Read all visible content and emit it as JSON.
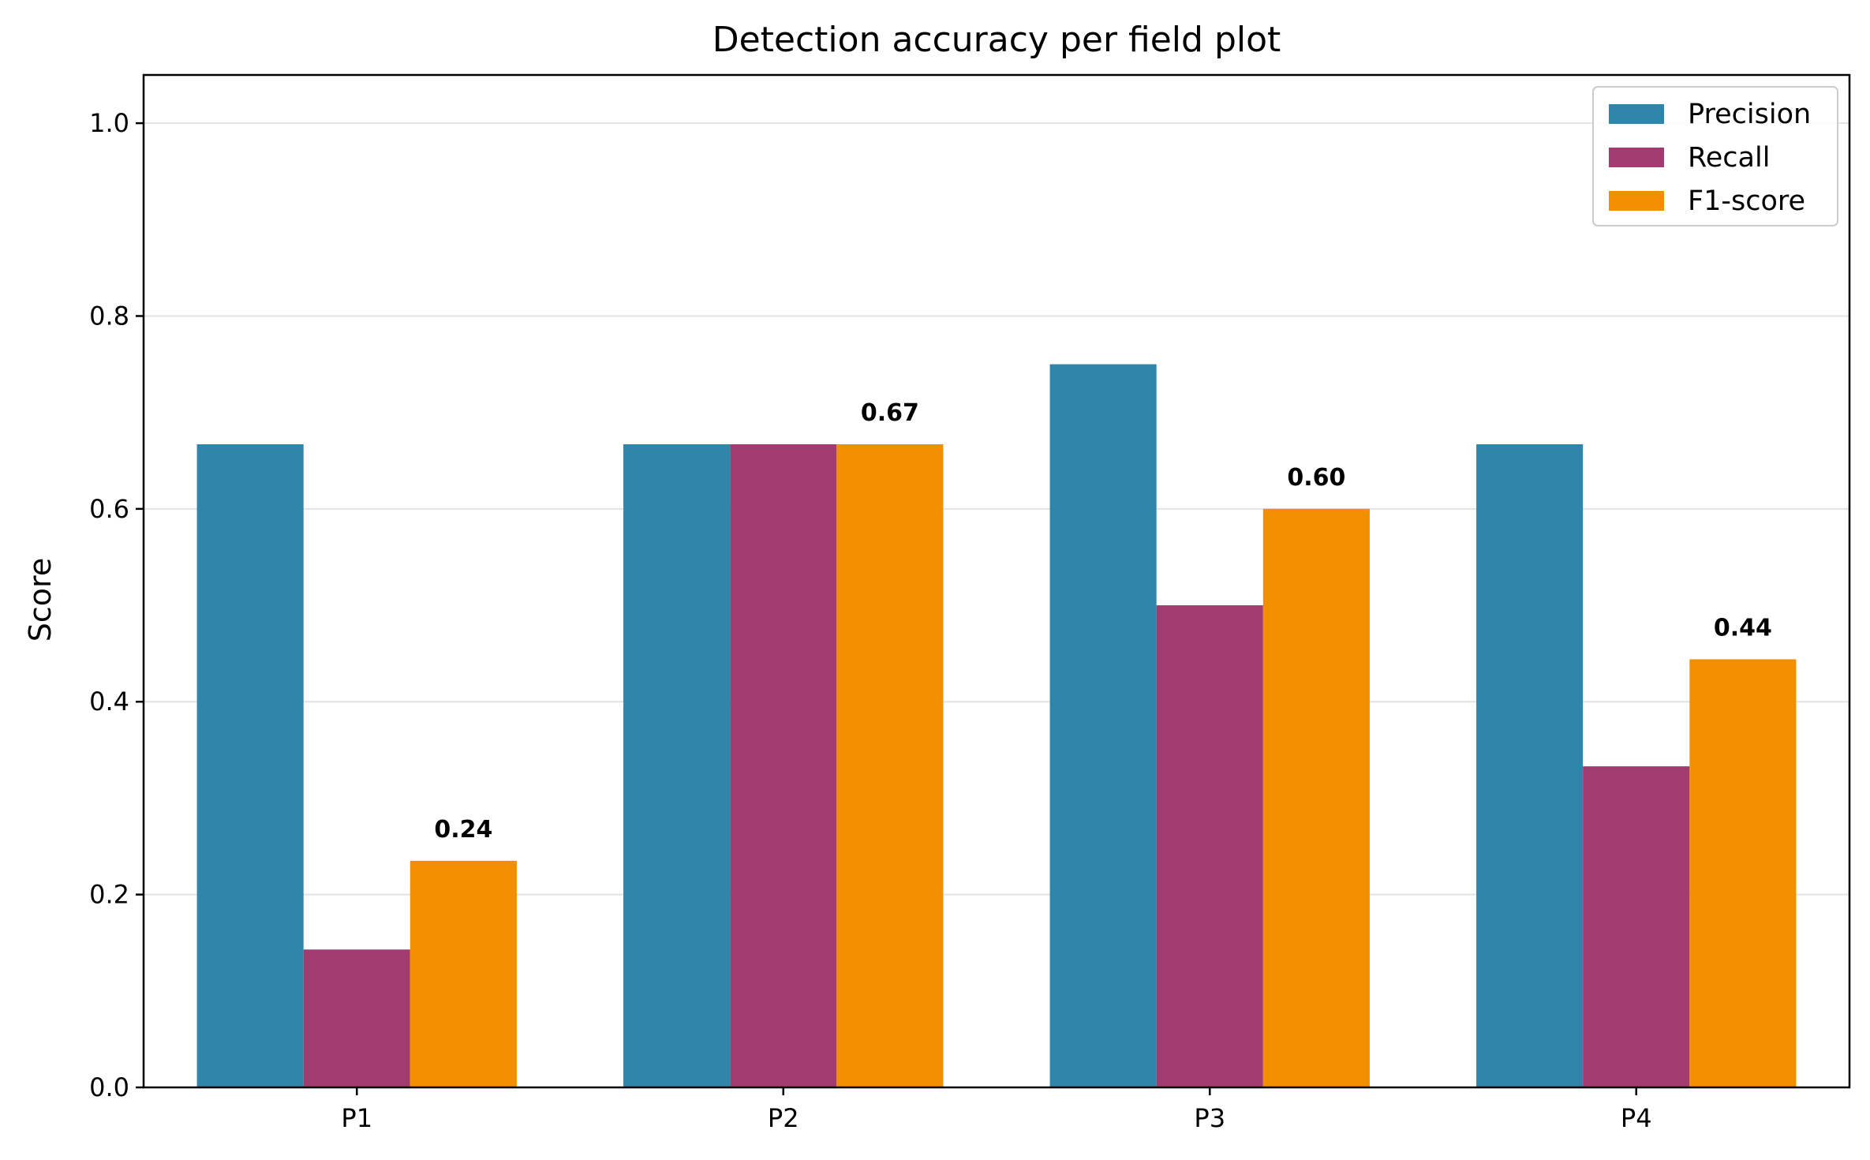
{
  "chart_data": {
    "type": "bar",
    "title": "Detection accuracy per field plot",
    "xlabel": "",
    "ylabel": "Score",
    "categories": [
      "P1",
      "P2",
      "P3",
      "P4"
    ],
    "series": [
      {
        "name": "Precision",
        "color": "#2e86ab",
        "values": [
          0.667,
          0.667,
          0.75,
          0.667
        ]
      },
      {
        "name": "Recall",
        "color": "#a23b6f",
        "values": [
          0.143,
          0.667,
          0.5,
          0.333
        ]
      },
      {
        "name": "F1-score",
        "color": "#f18f01",
        "values": [
          0.235,
          0.667,
          0.6,
          0.444
        ]
      }
    ],
    "data_labels": [
      "0.24",
      "0.67",
      "0.60",
      "0.44"
    ],
    "ylim": [
      0,
      1.05
    ],
    "yticks": [
      0.0,
      0.2,
      0.4,
      0.6,
      0.8,
      1.0
    ],
    "ytick_labels": [
      "0.0",
      "0.2",
      "0.4",
      "0.6",
      "0.8",
      "1.0"
    ],
    "grid": "horizontal",
    "legend_position": "top-right"
  }
}
